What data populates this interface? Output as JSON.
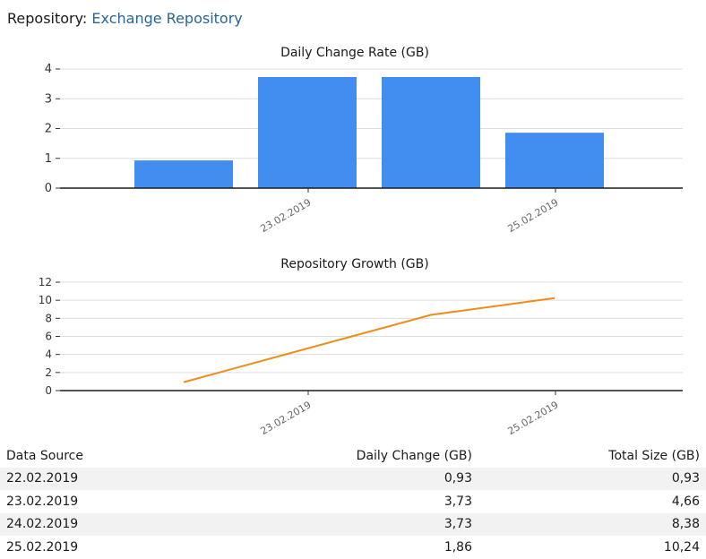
{
  "header": {
    "label": "Repository:",
    "repository_name": "Exchange Repository"
  },
  "chart_data": [
    {
      "type": "bar",
      "title": "Daily Change Rate (GB)",
      "categories": [
        "22.02.2019",
        "23.02.2019",
        "24.02.2019",
        "25.02.2019"
      ],
      "x_tick_labels": [
        "23.02.2019",
        "25.02.2019"
      ],
      "values": [
        0.93,
        3.73,
        3.73,
        1.86
      ],
      "y_ticks": [
        0,
        1,
        2,
        3,
        4
      ],
      "ylim": [
        0,
        4
      ],
      "grid": true,
      "legend": "none",
      "color": "#428ef0"
    },
    {
      "type": "line",
      "title": "Repository Growth (GB)",
      "categories": [
        "22.02.2019",
        "23.02.2019",
        "24.02.2019",
        "25.02.2019"
      ],
      "x_tick_labels": [
        "23.02.2019",
        "25.02.2019"
      ],
      "values": [
        0.93,
        4.66,
        8.38,
        10.24
      ],
      "y_ticks": [
        0,
        2,
        4,
        6,
        8,
        10,
        12
      ],
      "ylim": [
        0,
        12
      ],
      "grid": true,
      "legend": "none",
      "color": "#f08c1a"
    }
  ],
  "table": {
    "columns": [
      "Data Source",
      "Daily Change (GB)",
      "Total Size (GB)"
    ],
    "rows": [
      [
        "22.02.2019",
        "0,93",
        "0,93"
      ],
      [
        "23.02.2019",
        "3,73",
        "4,66"
      ],
      [
        "24.02.2019",
        "3,73",
        "8,38"
      ],
      [
        "25.02.2019",
        "1,86",
        "10,24"
      ]
    ]
  }
}
